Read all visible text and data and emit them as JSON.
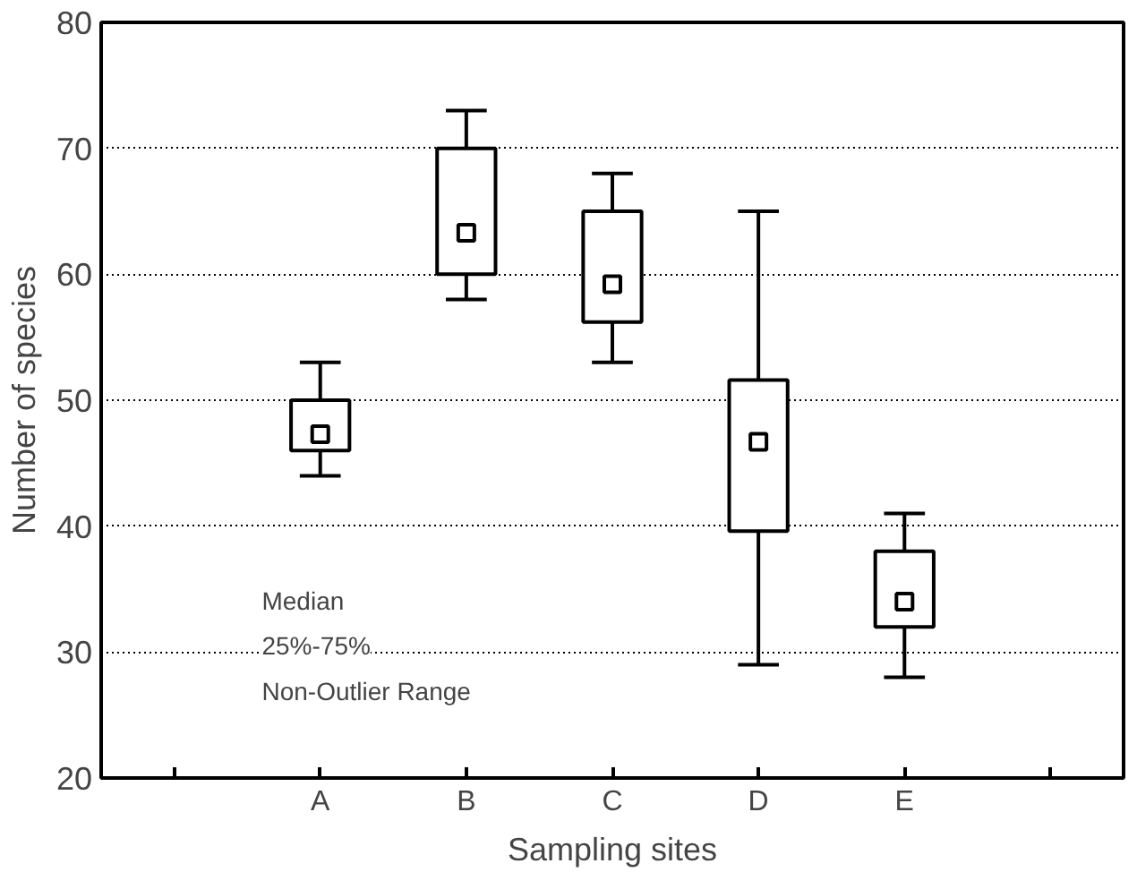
{
  "chart_data": {
    "type": "box",
    "xlabel": "Sampling sites",
    "ylabel": "Number of species",
    "categories": [
      null,
      "A",
      "B",
      "C",
      "D",
      "E",
      null
    ],
    "boxes": [
      null,
      {
        "low": 44,
        "q1": 46,
        "median": 47.3,
        "q3": 50,
        "high": 53
      },
      {
        "low": 58,
        "q1": 60,
        "median": 63.3,
        "q3": 70,
        "high": 73
      },
      {
        "low": 53,
        "q1": 56.2,
        "median": 59.2,
        "q3": 65,
        "high": 68
      },
      {
        "low": 29,
        "q1": 39.6,
        "median": 46.7,
        "q3": 51.6,
        "high": 65
      },
      {
        "low": 28,
        "q1": 32,
        "median": 34,
        "q3": 38,
        "high": 41
      },
      null
    ],
    "ylim": [
      20,
      80
    ],
    "yticks": [
      20,
      30,
      40,
      50,
      60,
      70,
      80
    ],
    "grid": "y",
    "annotations": [
      "Median",
      "25%-75%",
      "Non-Outlier Range"
    ]
  }
}
